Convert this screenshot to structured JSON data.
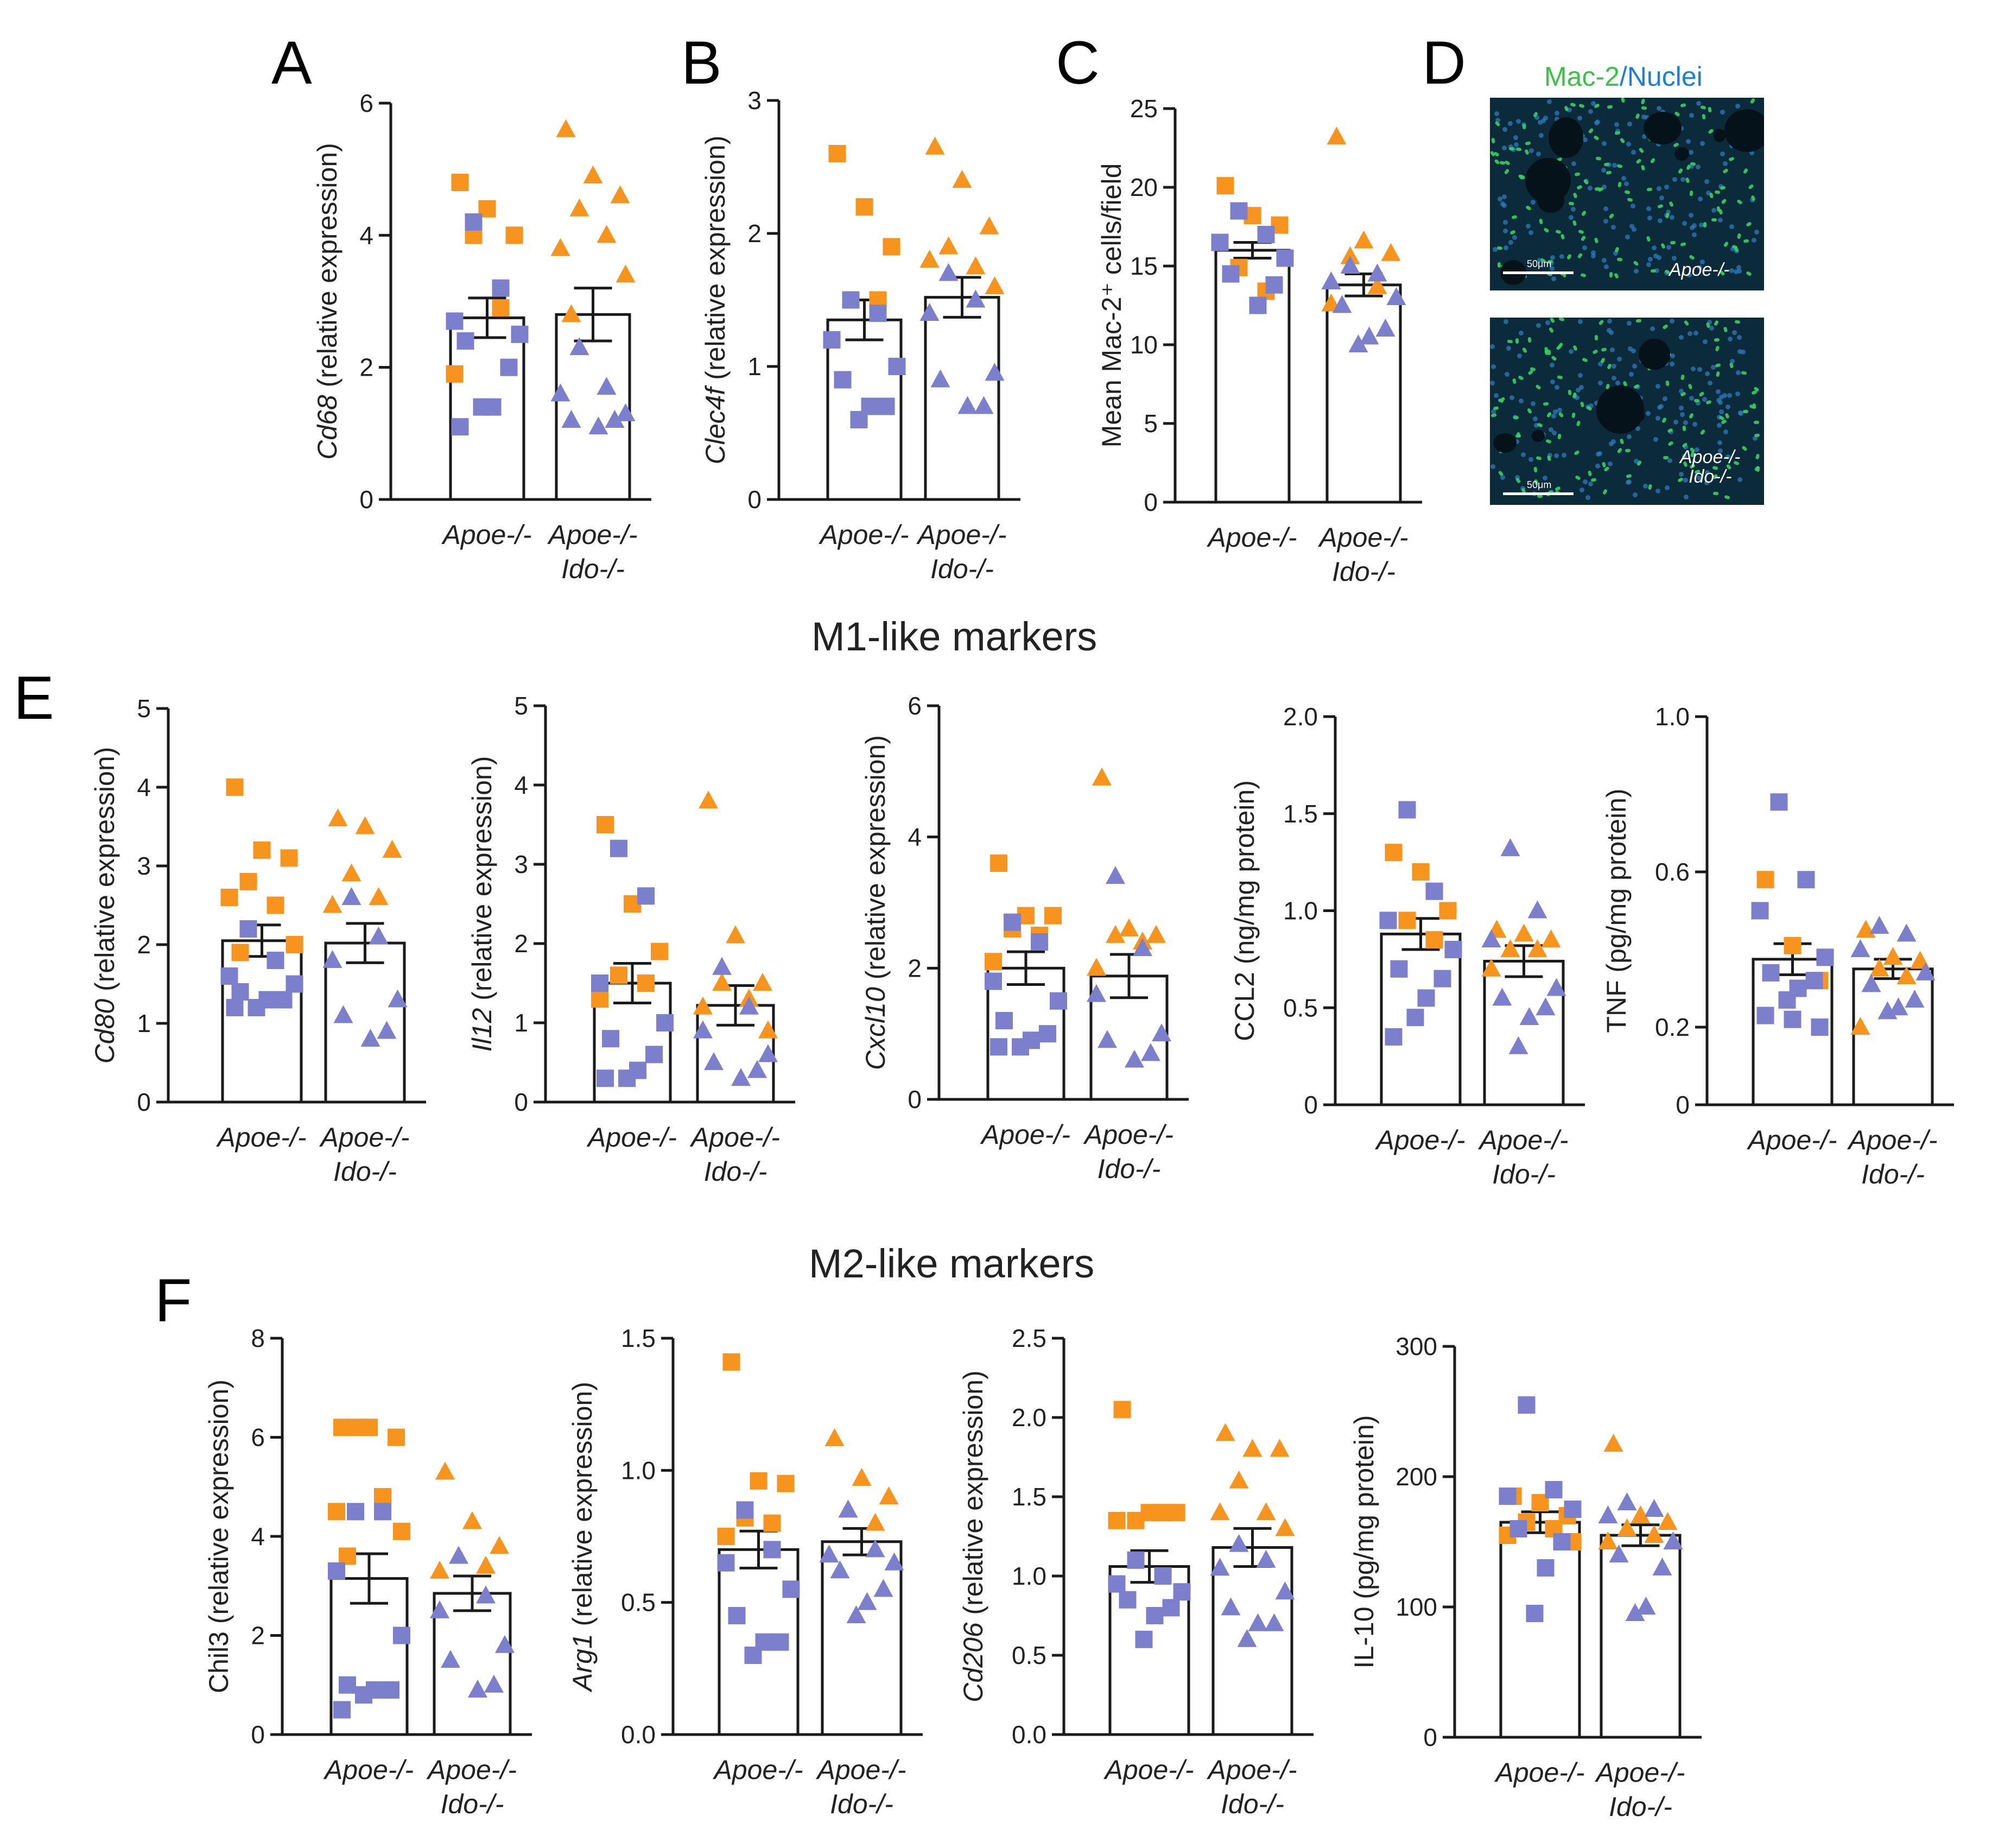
{
  "figure": {
    "section_titles": {
      "m1": "M1-like markers",
      "m2": "M2-like markers"
    },
    "panel_labels": [
      "A",
      "B",
      "C",
      "D",
      "E",
      "F"
    ],
    "micrograph": {
      "stain_green": "Mac-2",
      "slash": "/",
      "stain_blue": "Nuclei",
      "scale_bar": "50μm",
      "top_label": "Apoe-/-",
      "bottom_label_line1": "Apoe-/-",
      "bottom_label_line2": "Ido-/-"
    },
    "colors": {
      "orange": "#f7941d",
      "purple": "#7b7fcc",
      "axis": "#1a1a1a",
      "text": "#222222"
    }
  },
  "chart_data": [
    {
      "id": "A",
      "type": "bar",
      "ylabel_gene": "Cd68",
      "ylabel_rest": " (relative expression)",
      "ylim": [
        0,
        6
      ],
      "yticks": [
        "0",
        "2",
        "4",
        "6"
      ],
      "categories": [
        {
          "l1": "Apoe-/-",
          "l2": ""
        },
        {
          "l1": "Apoe-/-",
          "l2": "Ido-/-"
        }
      ],
      "series": [
        {
          "marker": "square",
          "mean": 2.75,
          "sem": 0.3,
          "orange": [
            4.8,
            4.4,
            4.0,
            4.0,
            2.9,
            1.9
          ],
          "purple": [
            4.2,
            3.2,
            2.7,
            2.5,
            2.4,
            2.0,
            1.4,
            1.4,
            1.1
          ]
        },
        {
          "marker": "triangle",
          "mean": 2.8,
          "sem": 0.4,
          "orange": [
            5.6,
            4.9,
            4.6,
            4.4,
            4.0,
            3.8,
            3.4,
            2.8
          ],
          "purple": [
            2.3,
            1.7,
            1.6,
            1.3,
            1.2,
            1.2,
            1.1
          ]
        }
      ]
    },
    {
      "id": "B",
      "type": "bar",
      "ylabel_gene": "Clec4f",
      "ylabel_rest": " (relative expression)",
      "ylim": [
        0,
        3
      ],
      "yticks": [
        "0",
        "1",
        "2",
        "3"
      ],
      "categories": [
        {
          "l1": "Apoe-/-",
          "l2": ""
        },
        {
          "l1": "Apoe-/-",
          "l2": "Ido-/-"
        }
      ],
      "series": [
        {
          "marker": "square",
          "mean": 1.35,
          "sem": 0.15,
          "orange": [
            2.6,
            2.2,
            1.9,
            1.5,
            1.5
          ],
          "purple": [
            1.5,
            1.4,
            1.2,
            1.0,
            0.9,
            0.7,
            0.7,
            0.6
          ]
        },
        {
          "marker": "triangle",
          "mean": 1.52,
          "sem": 0.15,
          "orange": [
            2.65,
            2.4,
            2.05,
            1.9,
            1.75,
            1.8,
            1.6
          ],
          "purple": [
            1.7,
            1.5,
            1.4,
            0.95,
            0.9,
            0.7,
            0.7
          ]
        }
      ]
    },
    {
      "id": "C",
      "type": "bar",
      "ylabel_gene": "",
      "ylabel_rest": "Mean Mac-2⁺ cells/field",
      "ylim": [
        0,
        25
      ],
      "yticks": [
        "0",
        "5",
        "10",
        "15",
        "20",
        "25"
      ],
      "categories": [
        {
          "l1": "Apoe-/-",
          "l2": ""
        },
        {
          "l1": "Apoe-/-",
          "l2": "Ido-/-"
        }
      ],
      "series": [
        {
          "marker": "square",
          "mean": 16.0,
          "sem": 0.5,
          "orange": [
            20.1,
            18.2,
            17.6,
            14.9,
            13.4
          ],
          "purple": [
            18.5,
            17.0,
            16.5,
            15.5,
            14.5,
            13.8,
            12.5
          ]
        },
        {
          "marker": "triangle",
          "mean": 13.8,
          "sem": 0.7,
          "orange": [
            23.2,
            16.6,
            15.8,
            15.6,
            13.7,
            12.6
          ],
          "purple": [
            15.0,
            14.5,
            14.0,
            13.0,
            12.5,
            11.0,
            10.5,
            10.0
          ]
        }
      ]
    },
    {
      "id": "E1",
      "type": "bar",
      "ylabel_gene": "Cd80",
      "ylabel_rest": " (relative expression)",
      "ylim": [
        0,
        5
      ],
      "yticks": [
        "0",
        "1",
        "2",
        "3",
        "4",
        "5"
      ],
      "categories": [
        {
          "l1": "Apoe-/-",
          "l2": ""
        },
        {
          "l1": "Apoe-/-",
          "l2": "Ido-/-"
        }
      ],
      "series": [
        {
          "marker": "square",
          "mean": 2.05,
          "sem": 0.2,
          "orange": [
            4.0,
            3.2,
            3.1,
            2.8,
            2.5,
            2.6,
            2.0,
            1.9
          ],
          "purple": [
            2.2,
            1.8,
            1.6,
            1.5,
            1.4,
            1.3,
            1.3,
            1.2,
            1.2
          ]
        },
        {
          "marker": "triangle",
          "mean": 2.02,
          "sem": 0.25,
          "orange": [
            3.6,
            3.5,
            3.2,
            2.9,
            2.6,
            2.5
          ],
          "purple": [
            2.6,
            2.1,
            1.8,
            1.3,
            1.1,
            0.9,
            0.8
          ]
        }
      ]
    },
    {
      "id": "E2",
      "type": "bar",
      "ylabel_gene": "Il12",
      "ylabel_rest": " (relative expression)",
      "ylim": [
        0,
        5
      ],
      "yticks": [
        "0",
        "1",
        "2",
        "3",
        "4",
        "5"
      ],
      "categories": [
        {
          "l1": "Apoe-/-",
          "l2": ""
        },
        {
          "l1": "Apoe-/-",
          "l2": "Ido-/-"
        }
      ],
      "series": [
        {
          "marker": "square",
          "mean": 1.5,
          "sem": 0.25,
          "orange": [
            3.5,
            2.5,
            1.9,
            1.6,
            1.5,
            1.3
          ],
          "purple": [
            3.2,
            2.6,
            1.5,
            1.0,
            0.8,
            0.6,
            0.4,
            0.3,
            0.3
          ]
        },
        {
          "marker": "triangle",
          "mean": 1.22,
          "sem": 0.25,
          "orange": [
            3.8,
            2.1,
            1.5,
            1.5,
            1.3,
            1.2,
            0.9
          ],
          "purple": [
            1.7,
            1.2,
            0.9,
            0.6,
            0.5,
            0.4,
            0.3
          ]
        }
      ]
    },
    {
      "id": "E3",
      "type": "bar",
      "ylabel_gene": "Cxcl10",
      "ylabel_rest": " (relative expression)",
      "ylim": [
        0,
        6
      ],
      "yticks": [
        "0",
        "2",
        "4",
        "6"
      ],
      "categories": [
        {
          "l1": "Apoe-/-",
          "l2": ""
        },
        {
          "l1": "Apoe-/-",
          "l2": "Ido-/-"
        }
      ],
      "series": [
        {
          "marker": "square",
          "mean": 2.0,
          "sem": 0.25,
          "orange": [
            3.6,
            2.8,
            2.8,
            2.6,
            2.5,
            2.1
          ],
          "purple": [
            2.7,
            2.4,
            1.8,
            1.5,
            1.2,
            1.0,
            0.9,
            0.8,
            0.8
          ]
        },
        {
          "marker": "triangle",
          "mean": 1.88,
          "sem": 0.33,
          "orange": [
            4.9,
            2.6,
            2.5,
            2.5,
            2.4,
            2.0
          ],
          "purple": [
            3.4,
            2.3,
            1.6,
            1.0,
            0.9,
            0.7,
            0.6
          ]
        }
      ]
    },
    {
      "id": "E4",
      "type": "bar",
      "ylabel_gene": "",
      "ylabel_rest": "CCL2 (ng/mg protein)",
      "ylim": [
        0,
        2.0
      ],
      "yticks": [
        "0",
        "0.5",
        "1.0",
        "1.5",
        "2.0"
      ],
      "categories": [
        {
          "l1": "Apoe-/-",
          "l2": ""
        },
        {
          "l1": "Apoe-/-",
          "l2": "Ido-/-"
        }
      ],
      "series": [
        {
          "marker": "square",
          "mean": 0.88,
          "sem": 0.08,
          "orange": [
            1.3,
            1.2,
            1.0,
            0.95,
            0.85
          ],
          "purple": [
            1.52,
            1.1,
            0.95,
            0.8,
            0.7,
            0.65,
            0.55,
            0.45,
            0.35
          ]
        },
        {
          "marker": "triangle",
          "mean": 0.74,
          "sem": 0.08,
          "orange": [
            0.9,
            0.88,
            0.85,
            0.8,
            0.8,
            0.7
          ],
          "purple": [
            1.32,
            1.0,
            0.85,
            0.6,
            0.55,
            0.5,
            0.45,
            0.3
          ]
        }
      ]
    },
    {
      "id": "E5",
      "type": "bar",
      "ylabel_gene": "",
      "ylabel_rest": "TNF (pg/mg protein)",
      "ylim": [
        0,
        1.0
      ],
      "yticks": [
        "0",
        "0.2",
        "0.6",
        "1.0"
      ],
      "categories": [
        {
          "l1": "Apoe-/-",
          "l2": ""
        },
        {
          "l1": "Apoe-/-",
          "l2": "Ido-/-"
        }
      ],
      "series": [
        {
          "marker": "square",
          "mean": 0.375,
          "sem": 0.04,
          "orange": [
            0.58,
            0.41,
            0.32
          ],
          "purple": [
            0.78,
            0.58,
            0.5,
            0.38,
            0.34,
            0.32,
            0.3,
            0.27,
            0.23,
            0.22,
            0.2
          ]
        },
        {
          "marker": "triangle",
          "mean": 0.35,
          "sem": 0.025,
          "orange": [
            0.45,
            0.38,
            0.37,
            0.35,
            0.33,
            0.2
          ],
          "purple": [
            0.46,
            0.44,
            0.4,
            0.34,
            0.31,
            0.27,
            0.25,
            0.24
          ]
        }
      ]
    },
    {
      "id": "F1",
      "type": "bar",
      "ylabel_gene": "",
      "ylabel_rest": "Chil3 (relative expression)",
      "ylim": [
        0,
        8
      ],
      "yticks": [
        "0",
        "2",
        "4",
        "6",
        "8"
      ],
      "categories": [
        {
          "l1": "Apoe-/-",
          "l2": ""
        },
        {
          "l1": "Apoe-/-",
          "l2": "Ido-/-"
        }
      ],
      "series": [
        {
          "marker": "square",
          "mean": 3.15,
          "sem": 0.5,
          "orange": [
            6.2,
            6.2,
            6.0,
            6.2,
            4.8,
            4.5,
            4.1,
            3.6
          ],
          "purple": [
            4.5,
            4.5,
            3.3,
            2.0,
            1.0,
            0.9,
            0.9,
            0.8,
            0.5
          ]
        },
        {
          "marker": "triangle",
          "mean": 2.85,
          "sem": 0.35,
          "orange": [
            5.3,
            4.3,
            3.8,
            3.6,
            3.4,
            3.3
          ],
          "purple": [
            3.6,
            2.8,
            2.5,
            1.8,
            1.5,
            1.0,
            0.9
          ]
        }
      ]
    },
    {
      "id": "F2",
      "type": "bar",
      "ylabel_gene": "Arg1",
      "ylabel_rest": " (relative expression)",
      "ylim": [
        0,
        1.5
      ],
      "yticks": [
        "0.0",
        "0.5",
        "1.0",
        "1.5"
      ],
      "categories": [
        {
          "l1": "Apoe-/-",
          "l2": ""
        },
        {
          "l1": "Apoe-/-",
          "l2": "Ido-/-"
        }
      ],
      "series": [
        {
          "marker": "square",
          "mean": 0.7,
          "sem": 0.07,
          "orange": [
            1.41,
            0.96,
            0.95,
            0.82,
            0.8,
            0.75
          ],
          "purple": [
            0.85,
            0.7,
            0.65,
            0.55,
            0.45,
            0.35,
            0.35,
            0.3
          ]
        },
        {
          "marker": "triangle",
          "mean": 0.73,
          "sem": 0.05,
          "orange": [
            1.12,
            0.97,
            0.9,
            0.85,
            0.8
          ],
          "purple": [
            0.85,
            0.7,
            0.68,
            0.65,
            0.62,
            0.55,
            0.5,
            0.45
          ]
        }
      ]
    },
    {
      "id": "F3",
      "type": "bar",
      "ylabel_gene": "Cd206",
      "ylabel_rest": " (relative expression)",
      "ylim": [
        0,
        2.5
      ],
      "yticks": [
        "0.0",
        "0.5",
        "1.0",
        "1.5",
        "2.0",
        "2.5"
      ],
      "categories": [
        {
          "l1": "Apoe-/-",
          "l2": ""
        },
        {
          "l1": "Apoe-/-",
          "l2": "Ido-/-"
        }
      ],
      "series": [
        {
          "marker": "square",
          "mean": 1.06,
          "sem": 0.1,
          "orange": [
            2.05,
            1.4,
            1.4,
            1.35,
            1.4,
            1.35
          ],
          "purple": [
            1.1,
            1.0,
            0.95,
            0.9,
            0.85,
            0.8,
            0.75,
            0.6
          ]
        },
        {
          "marker": "triangle",
          "mean": 1.18,
          "sem": 0.12,
          "orange": [
            1.9,
            1.8,
            1.8,
            1.6,
            1.4,
            1.4,
            1.3
          ],
          "purple": [
            1.2,
            1.1,
            1.05,
            0.9,
            0.8,
            0.7,
            0.7,
            0.6
          ]
        }
      ]
    },
    {
      "id": "F4",
      "type": "bar",
      "ylabel_gene": "",
      "ylabel_rest": "IL-10 (pg/mg protein)",
      "ylim": [
        0,
        300
      ],
      "yticks": [
        "0",
        "100",
        "200",
        "300"
      ],
      "categories": [
        {
          "l1": "Apoe-/-",
          "l2": ""
        },
        {
          "l1": "Apoe-/-",
          "l2": "Ido-/-"
        }
      ],
      "series": [
        {
          "marker": "square",
          "mean": 165,
          "sem": 8,
          "orange": [
            185,
            180,
            170,
            165,
            160,
            155,
            150
          ],
          "purple": [
            255,
            190,
            185,
            175,
            160,
            150,
            130,
            95
          ]
        },
        {
          "marker": "triangle",
          "mean": 155,
          "sem": 8,
          "orange": [
            225,
            170,
            165,
            160,
            155,
            150
          ],
          "purple": [
            180,
            175,
            170,
            150,
            140,
            130,
            100,
            95
          ]
        }
      ]
    }
  ]
}
